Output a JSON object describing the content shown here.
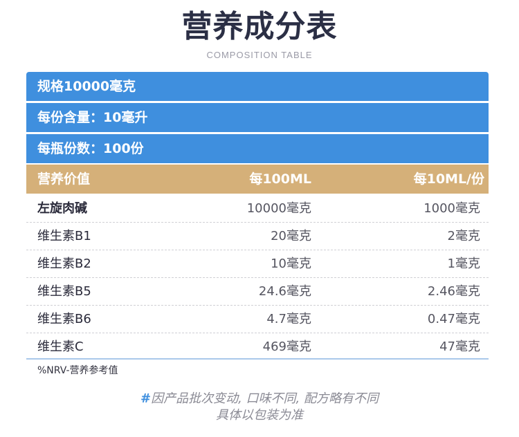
{
  "title": "营养成分表",
  "subtitle": "COMPOSITION TABLE",
  "specs": [
    "规格10000毫克",
    "每份含量：10毫升",
    "每瓶份数：100份"
  ],
  "table": {
    "headers": {
      "name": "营养价值",
      "per_100ml": "每100ML",
      "per_10ml": "每10ML/份"
    },
    "rows": [
      {
        "name": "左旋肉碱",
        "per_100ml": "10000毫克",
        "per_10ml": "1000毫克"
      },
      {
        "name": "维生素B1",
        "per_100ml": "20毫克",
        "per_10ml": "2毫克"
      },
      {
        "name": "维生素B2",
        "per_100ml": "10毫克",
        "per_10ml": "1毫克"
      },
      {
        "name": "维生素B5",
        "per_100ml": "24.6毫克",
        "per_10ml": "2.46毫克"
      },
      {
        "name": "维生素B6",
        "per_100ml": "4.7毫克",
        "per_10ml": "0.47毫克"
      },
      {
        "name": "维生素C",
        "per_100ml": "469毫克",
        "per_10ml": "47毫克"
      }
    ]
  },
  "nrv_note": "%NRV-营养参考值",
  "footnote": {
    "symbol": "#",
    "line1": "因产品批次变动, 口味不同, 配方略有不同",
    "line2": "具体以包装为准"
  },
  "colors": {
    "spec_bar": "#3f8fde",
    "header_row": "#d5b079",
    "title_text": "#2b2f45"
  }
}
